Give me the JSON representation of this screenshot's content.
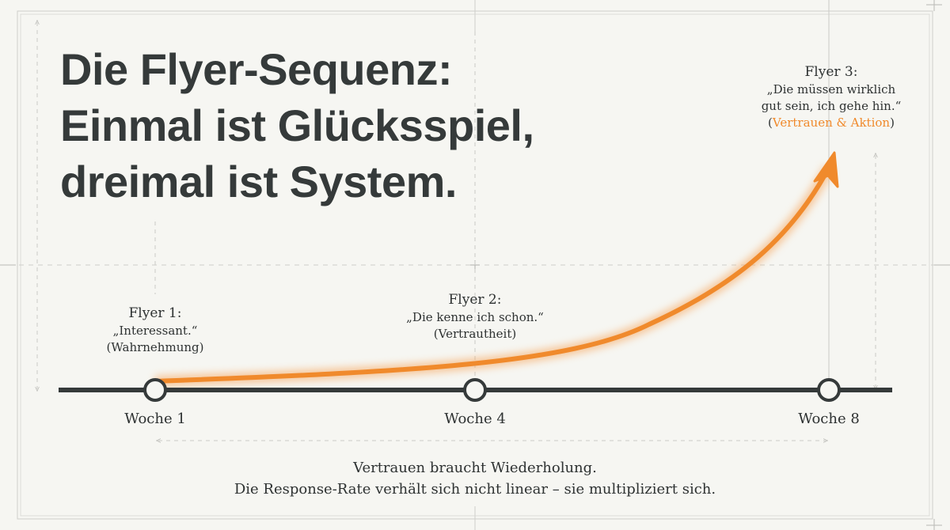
{
  "title_lines": [
    "Die Flyer-Sequenz:",
    "Einmal ist Glücksspiel,",
    "dreimal ist System."
  ],
  "flyers": [
    {
      "head": "Flyer 1:",
      "quote": "„Interessant.“",
      "note": "(Wahrnehmung)"
    },
    {
      "head": "Flyer 2:",
      "quote": "„Die kenne ich schon.“",
      "note": "(Vertrautheit)"
    },
    {
      "head": "Flyer 3:",
      "quote_line1": "„Die müssen wirklich",
      "quote_line2": "gut sein, ich gehe hin.“",
      "note_open": "(",
      "note_text": "Vertrauen & Aktion",
      "note_close": ")"
    }
  ],
  "weeks": [
    "Woche 1",
    "Woche 4",
    "Woche 8"
  ],
  "caption_lines": [
    "Vertrauen braucht Wiederholung.",
    "Die Response-Rate verhält sich nicht linear – sie multipliziert sich."
  ],
  "colors": {
    "accent": "#f08a2c",
    "ink": "#353a3a",
    "background": "#f6f6f2",
    "guide": "#c8c8c4"
  }
}
